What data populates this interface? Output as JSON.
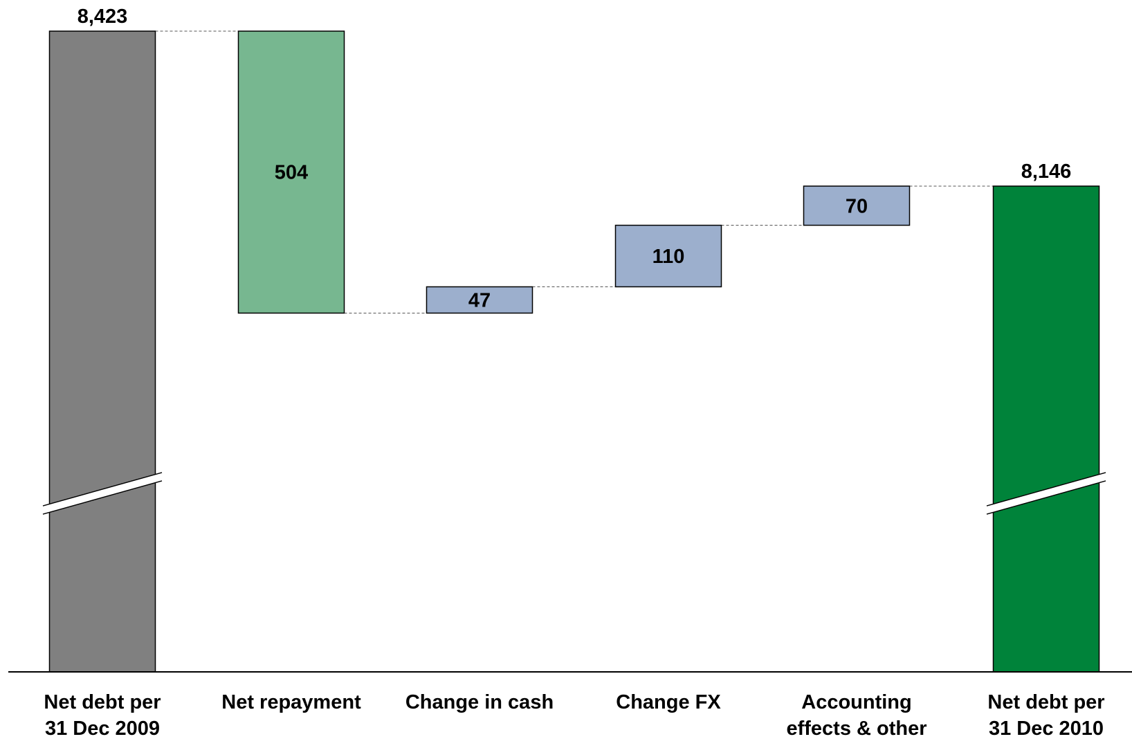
{
  "chart_data": {
    "type": "waterfall",
    "categories": [
      [
        "Net debt per",
        "31 Dec 2009"
      ],
      [
        "Net repayment"
      ],
      [
        "Change in cash"
      ],
      [
        "Change FX"
      ],
      [
        "Accounting",
        "effects & other"
      ],
      [
        "Net debt per",
        "31 Dec 2010"
      ]
    ],
    "bars": [
      {
        "kind": "total",
        "value": 8423,
        "label": "8,423",
        "color": "#808080"
      },
      {
        "kind": "decrease",
        "value": 504,
        "label": "504",
        "color": "#77b790"
      },
      {
        "kind": "increase",
        "value": 47,
        "label": "47",
        "color": "#9cafcd"
      },
      {
        "kind": "increase",
        "value": 110,
        "label": "110",
        "color": "#9cafcd"
      },
      {
        "kind": "increase",
        "value": 70,
        "label": "70",
        "color": "#9cafcd"
      },
      {
        "kind": "total",
        "value": 8146,
        "label": "8,146",
        "color": "#00833a"
      }
    ],
    "axis_break": true,
    "grid": false,
    "legend": "none"
  }
}
